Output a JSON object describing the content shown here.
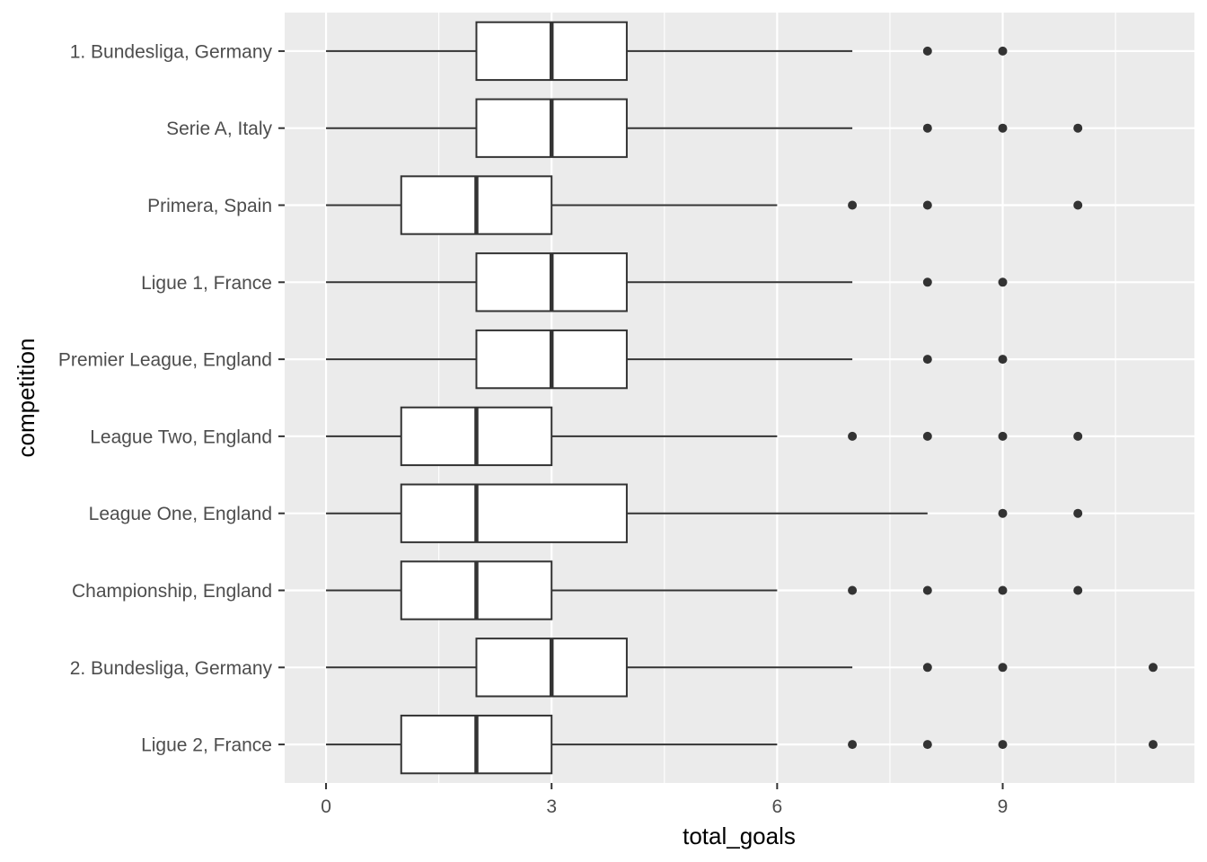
{
  "chart_data": {
    "type": "boxplot",
    "orientation": "horizontal",
    "xlabel": "total_goals",
    "ylabel": "competition",
    "xlim": [
      -0.55,
      11.55
    ],
    "x_ticks": [
      0,
      3,
      6,
      9
    ],
    "grid": true,
    "legend": "none",
    "colors": {
      "panel": "#ebebeb",
      "grid": "#ffffff",
      "box_fill": "#ffffff",
      "line": "#333333",
      "tick_text": "#4d4d4d"
    },
    "series": [
      {
        "category": "1. Bundesliga, Germany",
        "min": 0,
        "q1": 2,
        "median": 3,
        "q3": 4,
        "max": 7,
        "outliers": [
          8,
          9
        ]
      },
      {
        "category": "Serie A, Italy",
        "min": 0,
        "q1": 2,
        "median": 3,
        "q3": 4,
        "max": 7,
        "outliers": [
          8,
          9,
          10
        ]
      },
      {
        "category": "Primera, Spain",
        "min": 0,
        "q1": 1,
        "median": 2,
        "q3": 3,
        "max": 6,
        "outliers": [
          7,
          8,
          10
        ]
      },
      {
        "category": "Ligue 1, France",
        "min": 0,
        "q1": 2,
        "median": 3,
        "q3": 4,
        "max": 7,
        "outliers": [
          8,
          9
        ]
      },
      {
        "category": "Premier League, England",
        "min": 0,
        "q1": 2,
        "median": 3,
        "q3": 4,
        "max": 7,
        "outliers": [
          8,
          9
        ]
      },
      {
        "category": "League Two, England",
        "min": 0,
        "q1": 1,
        "median": 2,
        "q3": 3,
        "max": 6,
        "outliers": [
          7,
          8,
          9,
          10
        ]
      },
      {
        "category": "League One, England",
        "min": 0,
        "q1": 1,
        "median": 2,
        "q3": 4,
        "max": 8,
        "outliers": [
          9,
          10
        ]
      },
      {
        "category": "Championship, England",
        "min": 0,
        "q1": 1,
        "median": 2,
        "q3": 3,
        "max": 6,
        "outliers": [
          7,
          8,
          9,
          10
        ]
      },
      {
        "category": "2. Bundesliga, Germany",
        "min": 0,
        "q1": 2,
        "median": 3,
        "q3": 4,
        "max": 7,
        "outliers": [
          8,
          9,
          11
        ]
      },
      {
        "category": "Ligue 2, France",
        "min": 0,
        "q1": 1,
        "median": 2,
        "q3": 3,
        "max": 6,
        "outliers": [
          7,
          8,
          9,
          11
        ]
      }
    ]
  }
}
